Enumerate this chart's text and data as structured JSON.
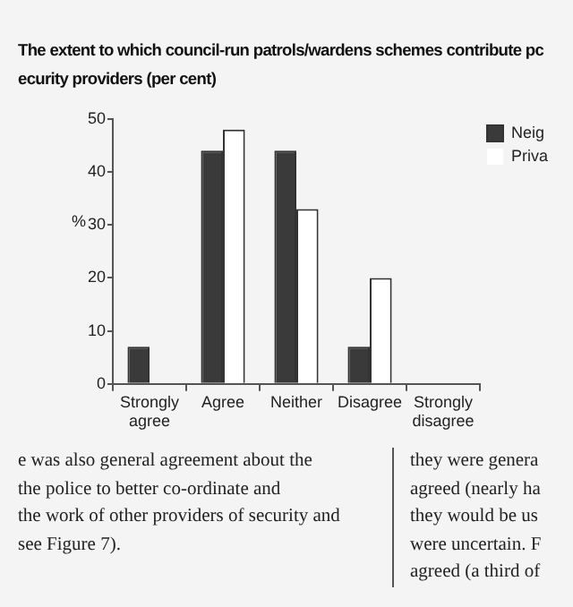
{
  "chart_data": {
    "type": "bar",
    "title": "The extent to which council-run patrols/wardens schemes contribute pc\necurity providers (per cent)",
    "ylabel": "%",
    "categories": [
      "Strongly agree",
      "Agree",
      "Neither",
      "Disagree",
      "Strongly disagree"
    ],
    "series": [
      {
        "name": "Neig",
        "color": "#3a3a3a",
        "values": [
          7,
          44,
          44,
          7,
          0
        ]
      },
      {
        "name": "Priva",
        "color": "#ffffff",
        "values": [
          0,
          48,
          33,
          20,
          0
        ]
      }
    ],
    "ylim": [
      0,
      50
    ],
    "yticks": [
      0,
      10,
      20,
      30,
      40,
      50
    ],
    "grid": false,
    "legend": "top right",
    "annotations": [
      "e was also general agreement about the\nthe police to better co-ordinate and\nthe work of other providers of security and\nsee Figure 7).",
      "they were genera\nagreed (nearly ha\nthey would be us\nwere uncertain. F\nagreed (a third of"
    ]
  }
}
